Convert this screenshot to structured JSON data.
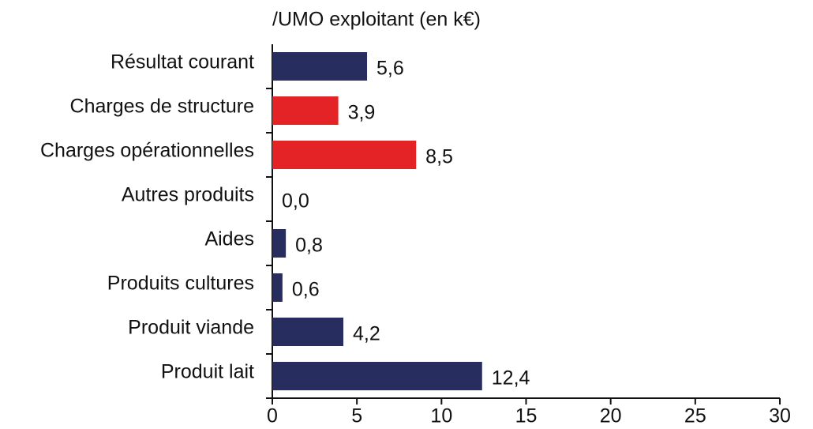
{
  "chart_data": {
    "type": "hbar",
    "title": "/UMO exploitant (en k€)",
    "categories": [
      "Résultat courant",
      "Charges de structure",
      "Charges opérationnelles",
      "Autres produits",
      "Aides",
      "Produits cultures",
      "Produit viande",
      "Produit lait"
    ],
    "values": [
      5.6,
      3.9,
      8.5,
      0.0,
      0.8,
      0.6,
      4.2,
      12.4
    ],
    "value_labels": [
      "5,6",
      "3,9",
      "8,5",
      "0,0",
      "0,8",
      "0,6",
      "4,2",
      "12,4"
    ],
    "colors": [
      "#272d5f",
      "#e42326",
      "#e42326",
      "#272d5f",
      "#272d5f",
      "#272d5f",
      "#272d5f",
      "#272d5f"
    ],
    "xlim": [
      0,
      30
    ],
    "xticks": [
      0,
      5,
      10,
      15,
      20,
      25,
      30
    ]
  }
}
